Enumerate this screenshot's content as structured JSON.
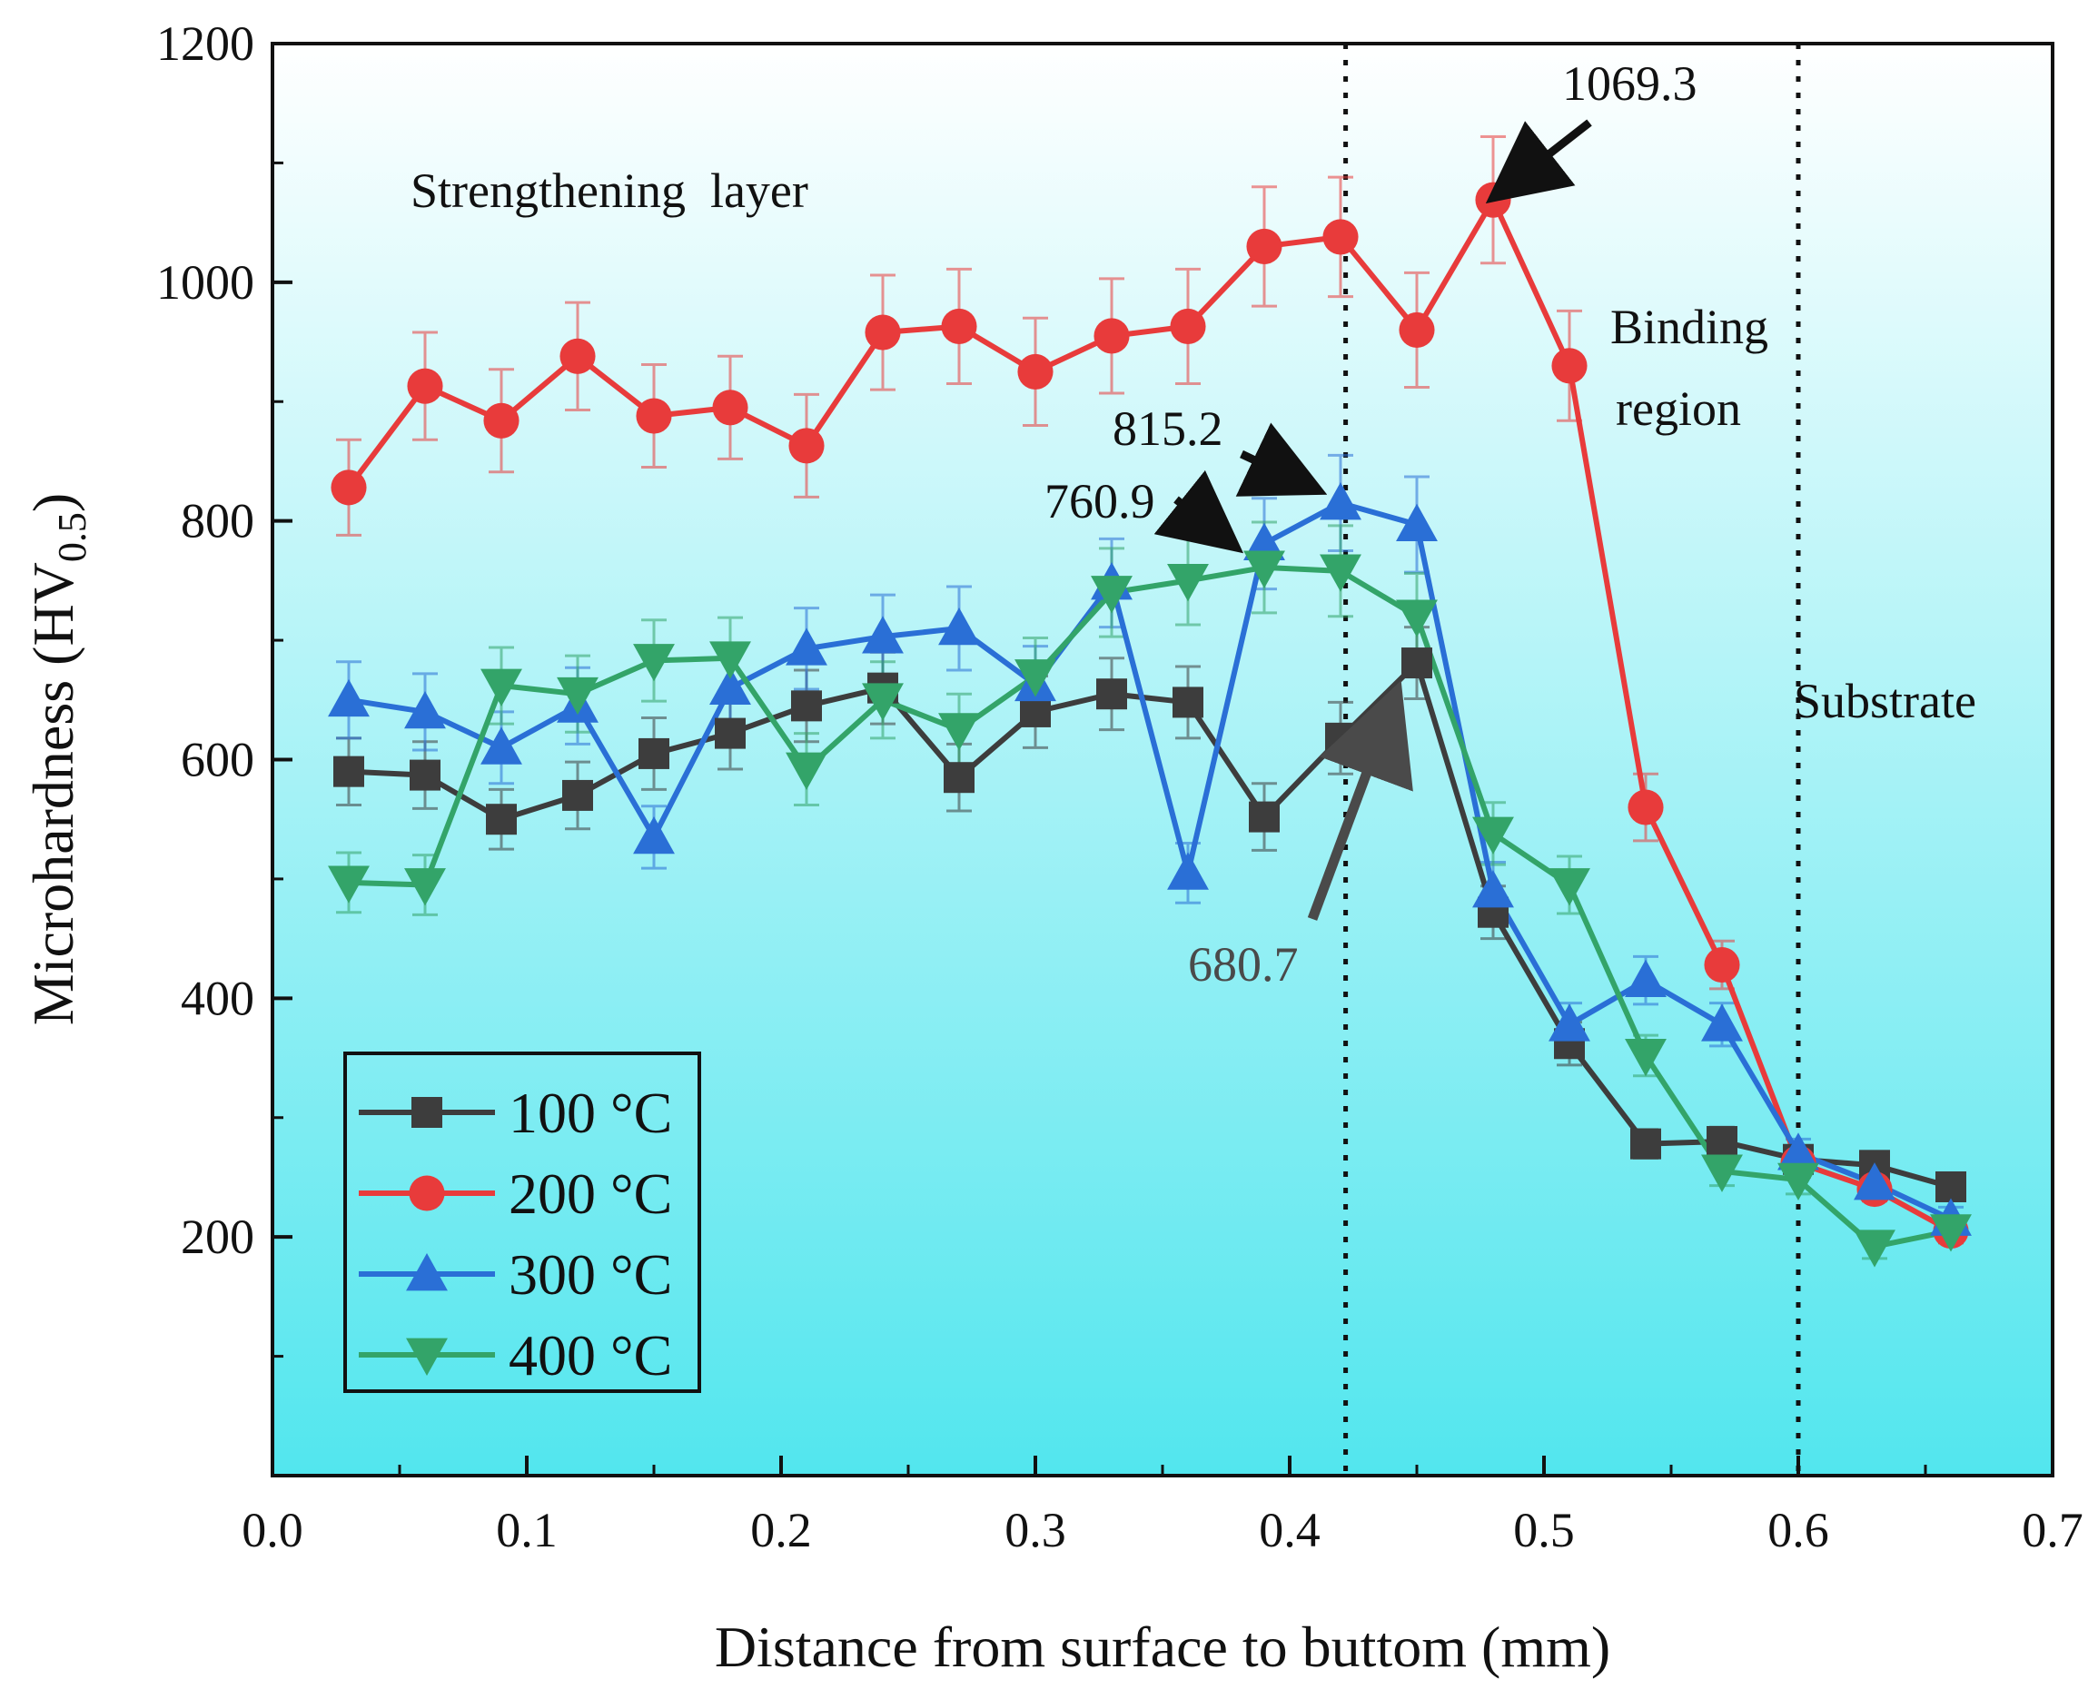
{
  "chart_data": {
    "type": "line",
    "xlabel": "Distance from surface to buttom (mm)",
    "ylabel_main": "Microhardness (HV",
    "ylabel_sub": "0.5",
    "ylabel_close": ")",
    "xlim": [
      0.0,
      0.7
    ],
    "ylim": [
      0,
      1200
    ],
    "xticks": [
      0.0,
      0.1,
      0.2,
      0.3,
      0.4,
      0.5,
      0.6,
      0.7
    ],
    "xtick_labels": [
      "0.0",
      "0.1",
      "0.2",
      "0.3",
      "0.4",
      "0.5",
      "0.6",
      "0.7"
    ],
    "yticks": [
      200,
      400,
      600,
      800,
      1000,
      1200
    ],
    "ytick_labels": [
      "200",
      "400",
      "600",
      "800",
      "1000",
      "1200"
    ],
    "grid": false,
    "legend_position": "bottom-left",
    "x": [
      0.03,
      0.06,
      0.09,
      0.12,
      0.15,
      0.18,
      0.21,
      0.24,
      0.27,
      0.3,
      0.33,
      0.36,
      0.39,
      0.42,
      0.45,
      0.48,
      0.51,
      0.54,
      0.57,
      0.6,
      0.63,
      0.66
    ],
    "series": [
      {
        "name": "100 °C",
        "color": "#3d3d3d",
        "marker": "square",
        "values": [
          590,
          587,
          550,
          570,
          605,
          622,
          645,
          660,
          585,
          640,
          655,
          648,
          552,
          618,
          681,
          472,
          362,
          278,
          280,
          265,
          260,
          242
        ],
        "errors": [
          28,
          28,
          25,
          28,
          30,
          30,
          30,
          30,
          28,
          30,
          30,
          30,
          28,
          30,
          30,
          22,
          18,
          12,
          12,
          10,
          10,
          10
        ]
      },
      {
        "name": "200 °C",
        "color": "#e83b3b",
        "marker": "circle",
        "values": [
          828,
          913,
          884,
          938,
          888,
          895,
          863,
          958,
          963,
          925,
          955,
          963,
          1030,
          1038,
          960,
          1069,
          930,
          560,
          428,
          262,
          240,
          205
        ],
        "errors": [
          40,
          45,
          43,
          45,
          43,
          43,
          43,
          48,
          48,
          45,
          48,
          48,
          50,
          50,
          48,
          53,
          46,
          28,
          20,
          12,
          10,
          10
        ]
      },
      {
        "name": "300 °C",
        "color": "#2a6fd6",
        "marker": "triangle-up",
        "values": [
          650,
          640,
          610,
          645,
          535,
          660,
          693,
          703,
          710,
          663,
          748,
          505,
          781,
          815,
          797,
          490,
          378,
          415,
          378,
          270,
          245,
          215
        ],
        "errors": [
          32,
          32,
          30,
          32,
          26,
          32,
          34,
          35,
          35,
          32,
          37,
          25,
          38,
          40,
          40,
          24,
          18,
          20,
          18,
          12,
          10,
          10
        ]
      },
      {
        "name": "400 °C",
        "color": "#33a469",
        "marker": "triangle-down",
        "values": [
          497,
          495,
          662,
          655,
          683,
          685,
          592,
          650,
          625,
          670,
          740,
          750,
          761,
          758,
          720,
          538,
          495,
          352,
          255,
          248,
          192,
          205
        ],
        "errors": [
          25,
          25,
          32,
          32,
          34,
          34,
          30,
          32,
          30,
          32,
          37,
          37,
          38,
          38,
          36,
          26,
          24,
          17,
          12,
          12,
          10,
          10
        ]
      }
    ],
    "vertical_lines": [
      0.422,
      0.6
    ],
    "region_labels": {
      "strengthening": "Strengthening  layer",
      "binding_1": "Binding",
      "binding_2": "region",
      "substrate": "Substrate"
    },
    "annotations": {
      "peak_200": "1069.3",
      "peak_300": "815.2",
      "peak_400": "760.9",
      "peak_100": "680.7"
    }
  }
}
